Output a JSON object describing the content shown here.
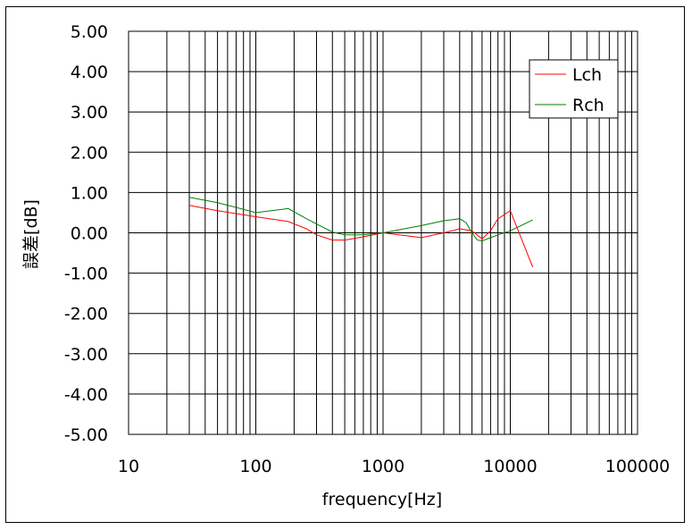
{
  "chart_data": {
    "type": "line",
    "xscale": "log",
    "xlabel": "frequency[Hz]",
    "ylabel": "誤差[dB]",
    "xlim": [
      10,
      100000
    ],
    "ylim": [
      -5,
      5
    ],
    "x_ticks": [
      "10",
      "100",
      "1000",
      "10000",
      "100000"
    ],
    "y_ticks": [
      "5.00",
      "4.00",
      "3.00",
      "2.00",
      "1.00",
      "0.00",
      "-1.00",
      "-2.00",
      "-3.00",
      "-4.00",
      "-5.00"
    ],
    "grid": true,
    "legend_position": "top-right",
    "series": [
      {
        "name": "Lch",
        "color": "#ff0000",
        "x": [
          30,
          50,
          100,
          180,
          250,
          300,
          400,
          500,
          700,
          1000,
          2000,
          3000,
          4000,
          5000,
          6000,
          7000,
          8000,
          10000,
          15000
        ],
        "y": [
          0.68,
          0.55,
          0.4,
          0.28,
          0.1,
          -0.05,
          -0.18,
          -0.18,
          -0.1,
          0.0,
          -0.12,
          0.0,
          0.1,
          0.05,
          -0.15,
          0.05,
          0.35,
          0.55,
          -0.85
        ]
      },
      {
        "name": "Rch",
        "color": "#007f00",
        "x": [
          30,
          50,
          100,
          180,
          250,
          300,
          400,
          500,
          700,
          1000,
          2000,
          3000,
          4000,
          4500,
          5000,
          5500,
          6000,
          7000,
          8000,
          10000,
          15000
        ],
        "y": [
          0.88,
          0.75,
          0.5,
          0.6,
          0.35,
          0.22,
          0.02,
          -0.05,
          -0.05,
          0.0,
          0.18,
          0.3,
          0.35,
          0.25,
          0.0,
          -0.18,
          -0.2,
          -0.12,
          -0.05,
          0.05,
          0.32
        ]
      }
    ]
  }
}
